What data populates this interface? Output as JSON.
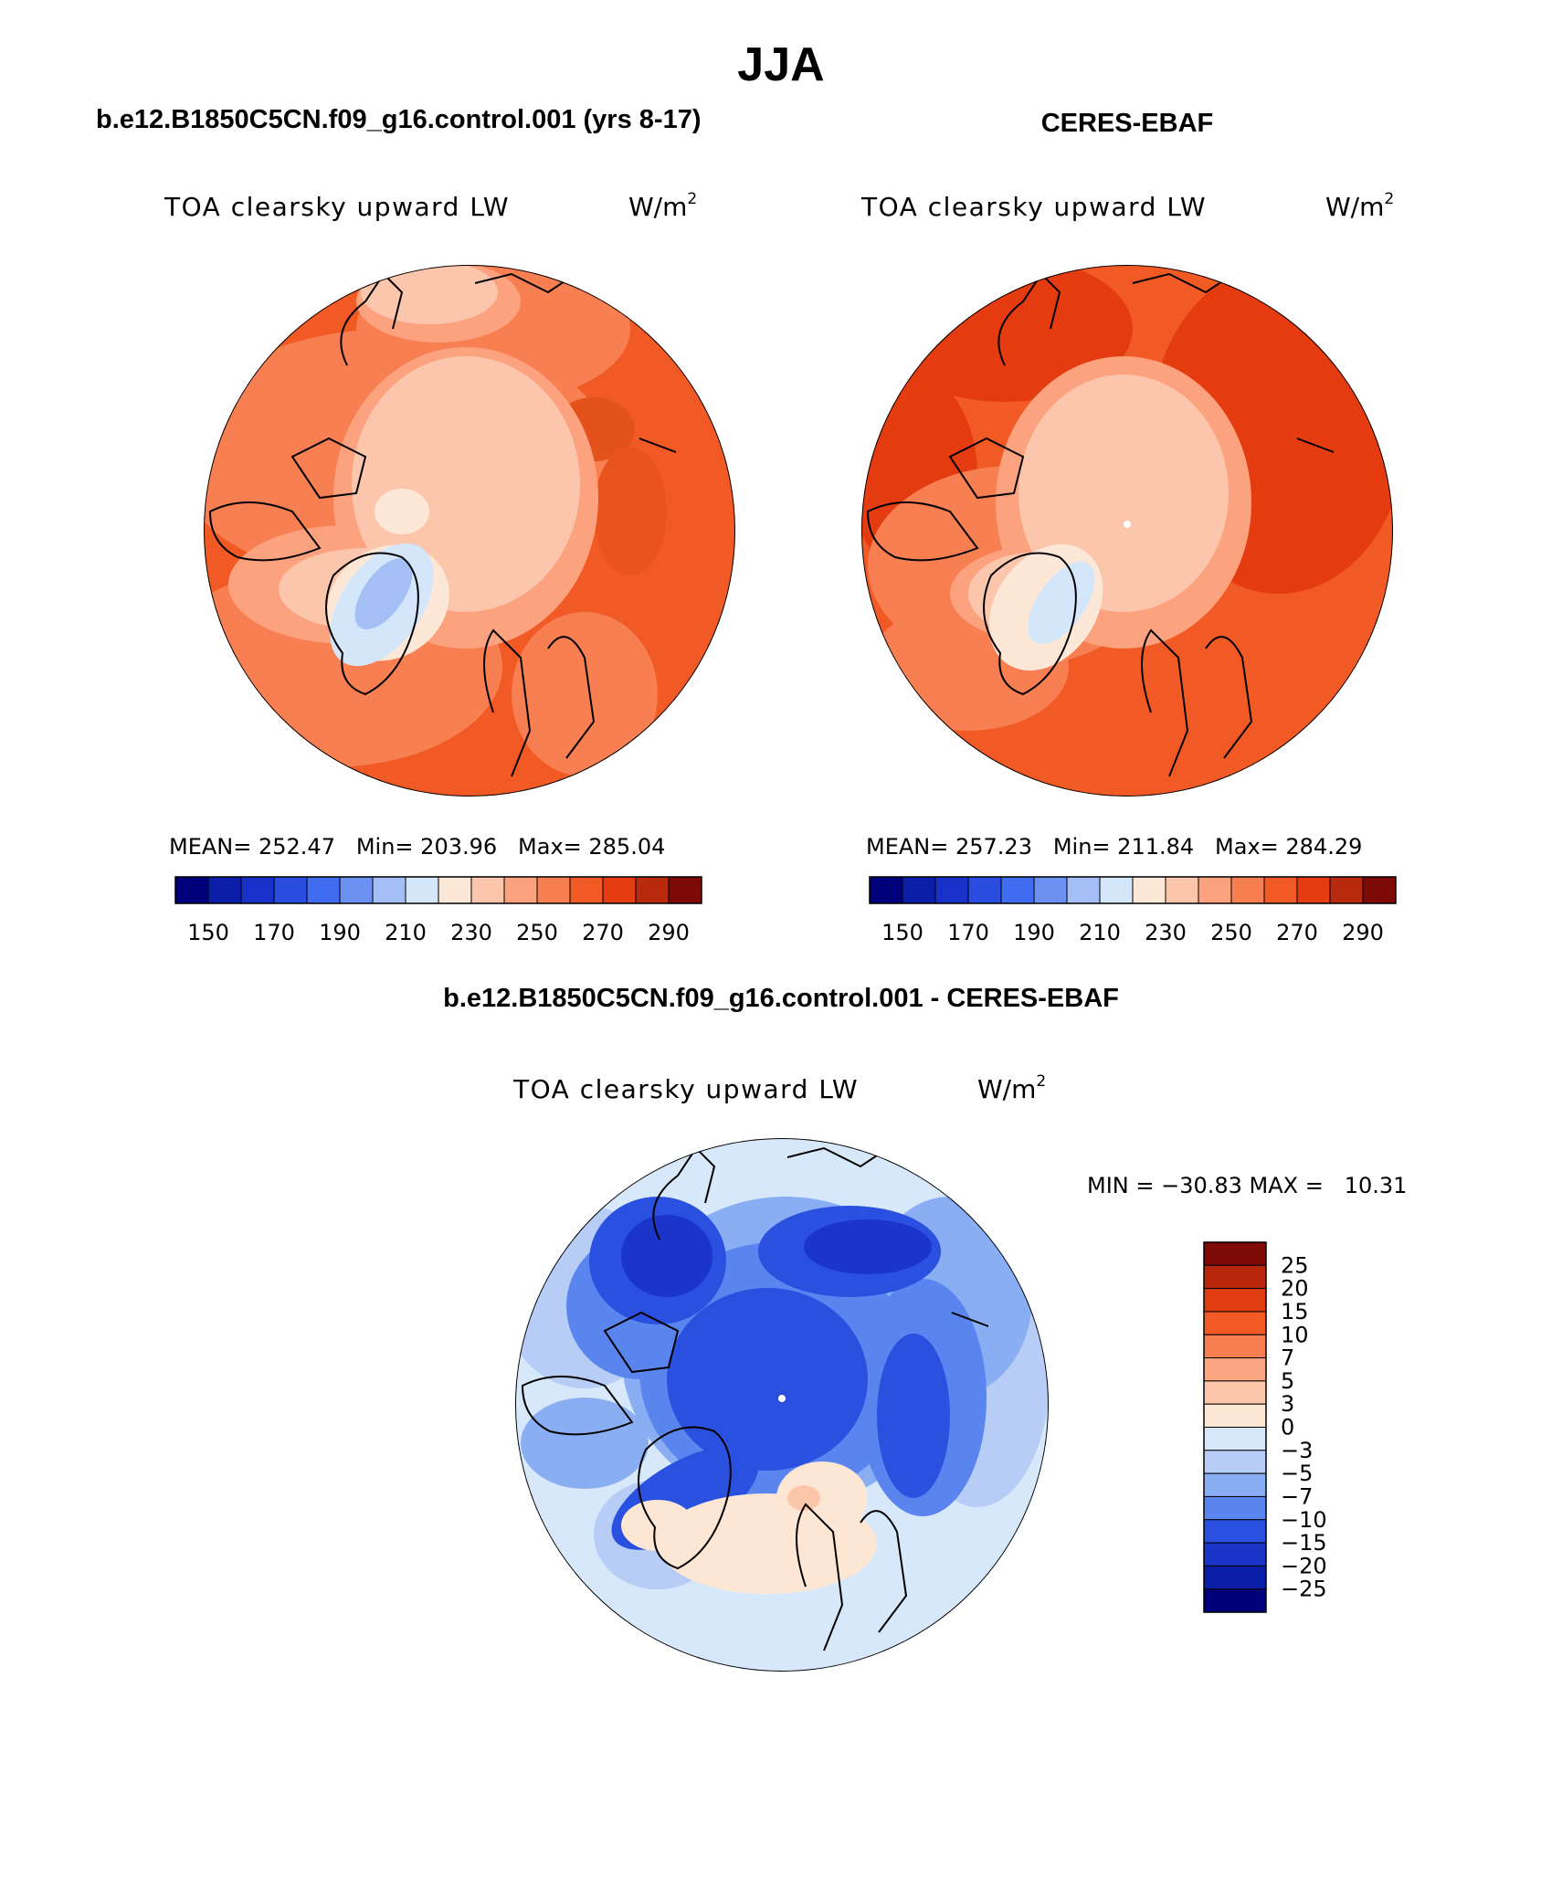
{
  "figure": {
    "season": "JJA",
    "left_title": "b.e12.B1850C5CN.f09_g16.control.001 (yrs 8-17)",
    "right_title": "CERES-EBAF",
    "diff_title": "b.e12.B1850C5CN.f09_g16.control.001 - CERES-EBAF"
  },
  "panels": {
    "model": {
      "variable": "TOA clearsky upward LW",
      "units": "W/m",
      "units_exp": "2",
      "stats": "MEAN= 252.47   Min= 203.96   Max= 285.04"
    },
    "obs": {
      "variable": "TOA clearsky upward LW",
      "units": "W/m",
      "units_exp": "2",
      "stats": "MEAN= 257.23   Min= 211.84   Max= 284.29"
    },
    "diff": {
      "variable": "TOA clearsky upward LW",
      "units": "W/m",
      "units_exp": "2",
      "stats": "MIN = −30.83 MAX =   10.31"
    }
  },
  "abs_colorbar": {
    "colors": [
      "#00007a",
      "#0a1ea8",
      "#1832c9",
      "#2a4de0",
      "#3f6cf0",
      "#6b92f2",
      "#a3bff6",
      "#d4e6fa",
      "#fde8d8",
      "#fcc6ad",
      "#fca27e",
      "#f77f52",
      "#f15a24",
      "#e43c10",
      "#b82a0e",
      "#7e0a08"
    ],
    "labels": [
      "150",
      "170",
      "190",
      "210",
      "230",
      "250",
      "270",
      "290"
    ]
  },
  "diff_colorbar": {
    "colors": [
      "#00007a",
      "#0a1ea8",
      "#1a35c7",
      "#2a50e0",
      "#5a85ee",
      "#8aaef3",
      "#b7cdf6",
      "#d8e8fb",
      "#fde6d4",
      "#fcc6ab",
      "#fca582",
      "#f77f52",
      "#f15a24",
      "#e03e12",
      "#b8260c",
      "#7e0a08"
    ],
    "labels": [
      "25",
      "20",
      "15",
      "10",
      "7",
      "5",
      "3",
      "0",
      "−3",
      "−5",
      "−7",
      "−10",
      "−15",
      "−20",
      "−25"
    ]
  },
  "chart_data": [
    {
      "type": "heatmap",
      "title": "TOA clearsky upward LW",
      "panel": "b.e12.B1850C5CN.f09_g16.control.001 (yrs 8-17)",
      "units": "W/m2",
      "levels": [
        150,
        160,
        170,
        180,
        190,
        200,
        210,
        220,
        230,
        240,
        250,
        260,
        270,
        280,
        290
      ],
      "mean": 252.47,
      "min": 203.96,
      "max": 285.04
    },
    {
      "type": "heatmap",
      "title": "TOA clearsky upward LW",
      "panel": "CERES-EBAF",
      "units": "W/m2",
      "levels": [
        150,
        160,
        170,
        180,
        190,
        200,
        210,
        220,
        230,
        240,
        250,
        260,
        270,
        280,
        290
      ],
      "mean": 257.23,
      "min": 211.84,
      "max": 284.29
    },
    {
      "type": "heatmap",
      "title": "TOA clearsky upward LW",
      "panel": "b.e12.B1850C5CN.f09_g16.control.001 - CERES-EBAF",
      "units": "W/m2",
      "levels": [
        -25,
        -20,
        -15,
        -10,
        -7,
        -5,
        -3,
        0,
        3,
        5,
        7,
        10,
        15,
        20,
        25
      ],
      "min": -30.83,
      "max": 10.31
    }
  ]
}
